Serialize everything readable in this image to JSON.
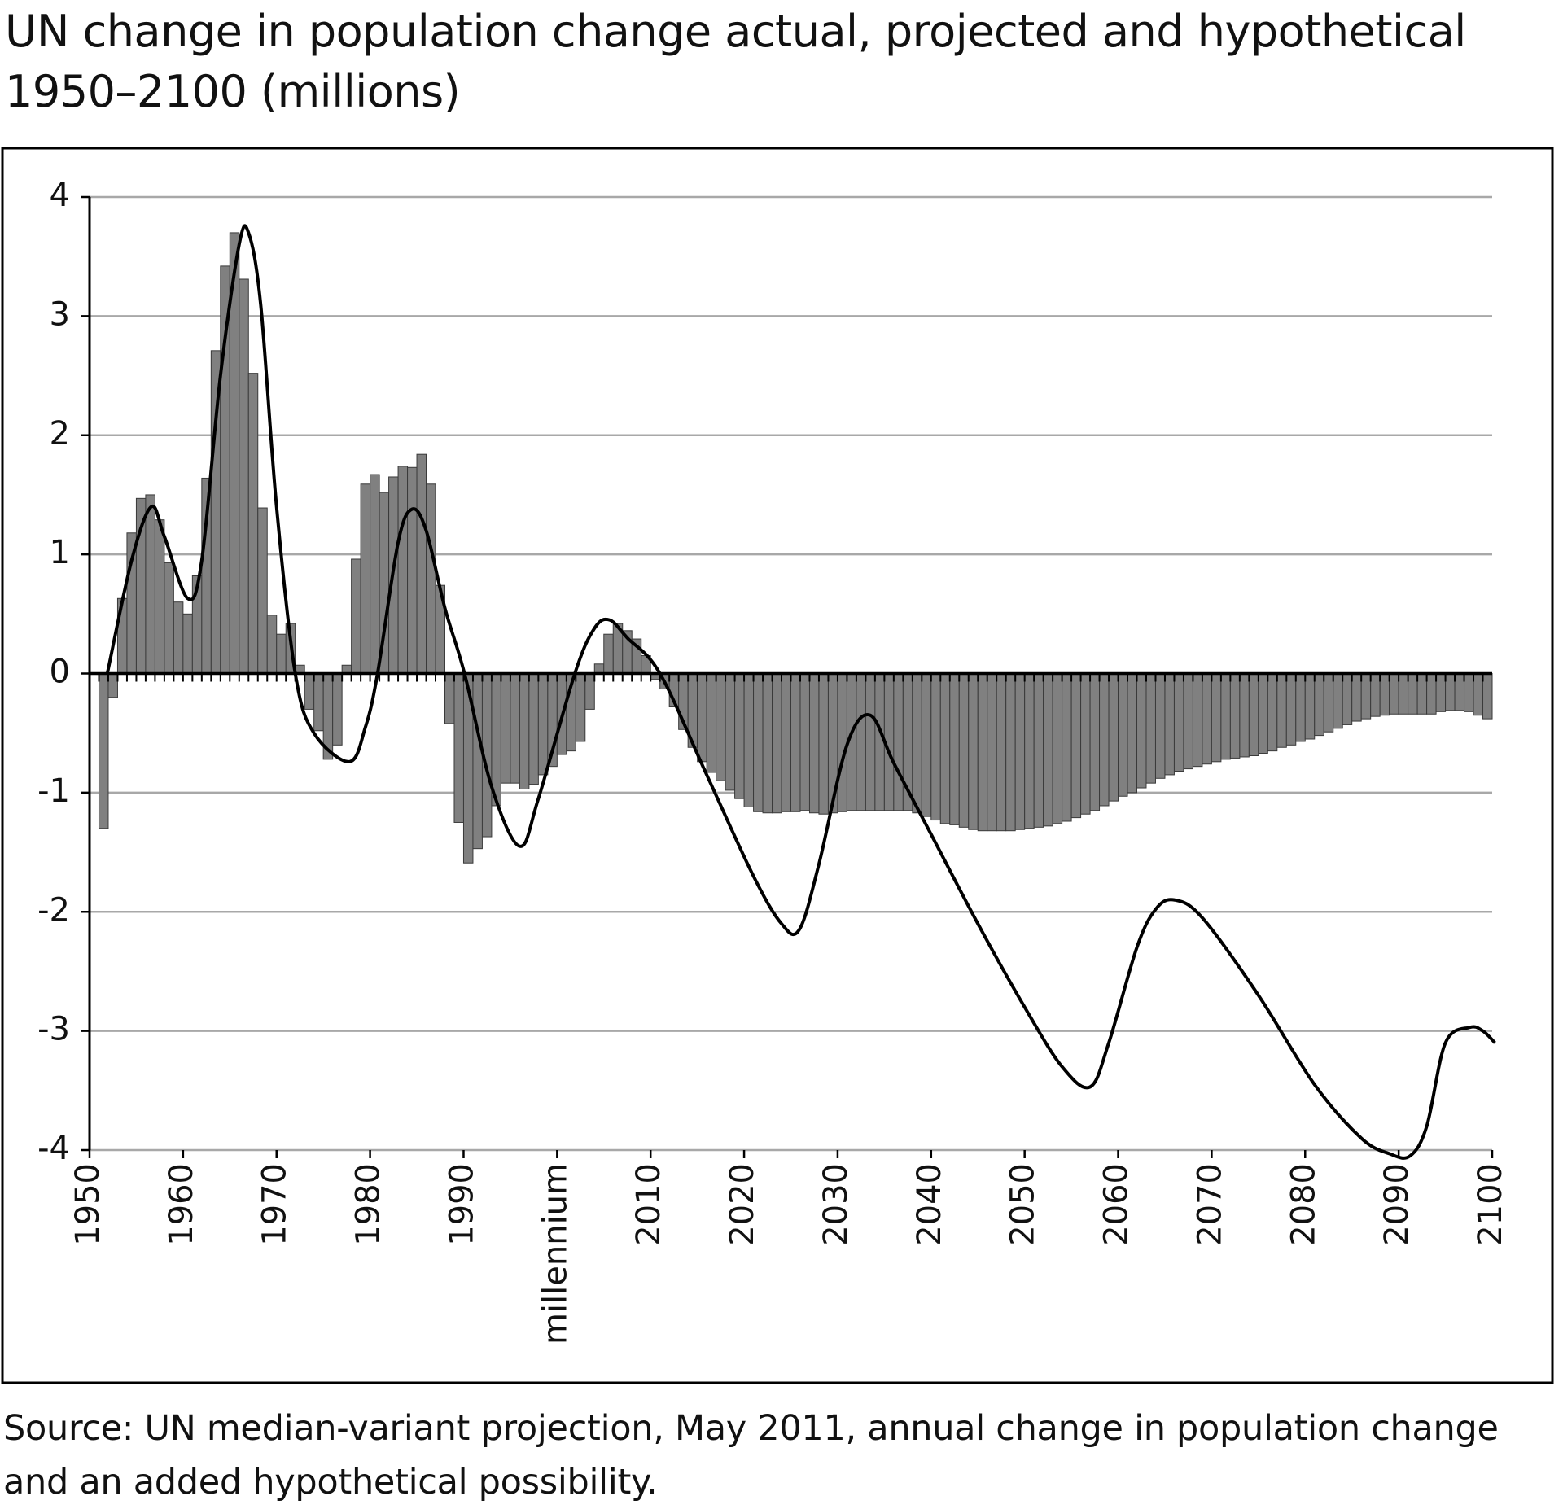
{
  "chart_data": {
    "type": "combo",
    "title": "UN change in population change actual, projected and hypothetical\n1950–2100 (millions)",
    "source": "Source: UN median-variant projection, May 2011, annual change in population change\nand an added hypothetical possibility.",
    "xlim": [
      1950,
      2100
    ],
    "xticks": [
      1950,
      1960,
      1970,
      1980,
      1990,
      {
        "value": 2000,
        "label": "millennium"
      },
      2010,
      2020,
      2030,
      2040,
      2050,
      2060,
      2070,
      2080,
      2090,
      2100
    ],
    "ylim": [
      -4,
      4
    ],
    "yticks": [
      -4,
      -3,
      -2,
      -1,
      0,
      1,
      2,
      3,
      4
    ],
    "grid": true,
    "series": [
      {
        "type": "bar",
        "color": "#808080",
        "x": [
          1951,
          1952,
          1953,
          1954,
          1955,
          1956,
          1957,
          1958,
          1959,
          1960,
          1961,
          1962,
          1963,
          1964,
          1965,
          1966,
          1967,
          1968,
          1969,
          1970,
          1971,
          1972,
          1973,
          1974,
          1975,
          1976,
          1977,
          1978,
          1979,
          1980,
          1981,
          1982,
          1983,
          1984,
          1985,
          1986,
          1987,
          1988,
          1989,
          1990,
          1991,
          1992,
          1993,
          1994,
          1995,
          1996,
          1997,
          1998,
          1999,
          2000,
          2001,
          2002,
          2003,
          2004,
          2005,
          2006,
          2007,
          2008,
          2009,
          2010,
          2011,
          2012,
          2013,
          2014,
          2015,
          2016,
          2017,
          2018,
          2019,
          2020,
          2021,
          2022,
          2023,
          2024,
          2025,
          2026,
          2027,
          2028,
          2029,
          2030,
          2031,
          2032,
          2033,
          2034,
          2035,
          2036,
          2037,
          2038,
          2039,
          2040,
          2041,
          2042,
          2043,
          2044,
          2045,
          2046,
          2047,
          2048,
          2049,
          2050,
          2051,
          2052,
          2053,
          2054,
          2055,
          2056,
          2057,
          2058,
          2059,
          2060,
          2061,
          2062,
          2063,
          2064,
          2065,
          2066,
          2067,
          2068,
          2069,
          2070,
          2071,
          2072,
          2073,
          2074,
          2075,
          2076,
          2077,
          2078,
          2079,
          2080,
          2081,
          2082,
          2083,
          2084,
          2085,
          2086,
          2087,
          2088,
          2089,
          2090,
          2091,
          2092,
          2093,
          2094,
          2095,
          2096,
          2097,
          2098,
          2099
        ],
        "values": [
          -1.3,
          -0.2,
          0.63,
          1.18,
          1.47,
          1.5,
          1.29,
          0.93,
          0.6,
          0.5,
          0.82,
          1.64,
          2.71,
          3.42,
          3.7,
          3.31,
          2.52,
          1.39,
          0.49,
          0.33,
          0.42,
          0.07,
          -0.3,
          -0.48,
          -0.72,
          -0.6,
          0.07,
          0.96,
          1.59,
          1.67,
          1.52,
          1.65,
          1.74,
          1.73,
          1.84,
          1.59,
          0.74,
          -0.42,
          -1.25,
          -1.59,
          -1.47,
          -1.37,
          -1.11,
          -0.92,
          -0.92,
          -0.97,
          -0.93,
          -0.85,
          -0.78,
          -0.68,
          -0.65,
          -0.57,
          -0.3,
          0.08,
          0.33,
          0.42,
          0.36,
          0.29,
          0.15,
          -0.05,
          -0.13,
          -0.28,
          -0.47,
          -0.62,
          -0.74,
          -0.83,
          -0.9,
          -0.98,
          -1.05,
          -1.12,
          -1.16,
          -1.17,
          -1.17,
          -1.16,
          -1.16,
          -1.15,
          -1.17,
          -1.18,
          -1.17,
          -1.16,
          -1.15,
          -1.15,
          -1.15,
          -1.15,
          -1.15,
          -1.15,
          -1.15,
          -1.17,
          -1.2,
          -1.23,
          -1.26,
          -1.27,
          -1.29,
          -1.31,
          -1.32,
          -1.32,
          -1.32,
          -1.32,
          -1.31,
          -1.3,
          -1.29,
          -1.28,
          -1.26,
          -1.24,
          -1.21,
          -1.18,
          -1.15,
          -1.11,
          -1.07,
          -1.03,
          -1.0,
          -0.96,
          -0.92,
          -0.88,
          -0.85,
          -0.82,
          -0.8,
          -0.78,
          -0.76,
          -0.74,
          -0.72,
          -0.71,
          -0.7,
          -0.69,
          -0.67,
          -0.65,
          -0.62,
          -0.6,
          -0.57,
          -0.55,
          -0.52,
          -0.49,
          -0.46,
          -0.43,
          -0.4,
          -0.38,
          -0.36,
          -0.35,
          -0.34,
          -0.34,
          -0.34,
          -0.34,
          -0.34,
          -0.32,
          -0.31,
          -0.31,
          -0.32,
          -0.35,
          -0.38
        ]
      },
      {
        "type": "line",
        "color": "#000000",
        "x": [
          1951.9,
          1954.5,
          1956.6,
          1958,
          1960.5,
          1962,
          1964,
          1966,
          1967,
          1968.3,
          1970,
          1972,
          1974,
          1977.8,
          1979.5,
          1980.8,
          1983,
          1984.5,
          1986,
          1988,
          1990.1,
          1993,
          1996,
          1998,
          2001.9,
          2004,
          2005.6,
          2007.5,
          2011,
          2016,
          2021,
          2024,
          2025.9,
          2028,
          2031,
          2033.5,
          2036,
          2040,
          2045,
          2050,
          2054,
          2057,
          2059,
          2062,
          2064,
          2066,
          2069,
          2075,
          2081,
          2086,
          2089,
          2091.2,
          2093,
          2095,
          2097.6,
          2099,
          2100.3
        ],
        "values": [
          0,
          0.95,
          1.4,
          1.15,
          0.63,
          0.95,
          2.5,
          3.6,
          3.7,
          3.1,
          1.4,
          0,
          -0.5,
          -0.74,
          -0.45,
          0,
          1.1,
          1.38,
          1.2,
          0.55,
          0,
          -0.95,
          -1.45,
          -1.05,
          0,
          0.38,
          0.45,
          0.3,
          0,
          -0.85,
          -1.7,
          -2.1,
          -2.15,
          -1.6,
          -0.6,
          -0.35,
          -0.75,
          -1.35,
          -2.1,
          -2.8,
          -3.3,
          -3.47,
          -3.1,
          -2.3,
          -1.98,
          -1.9,
          -2.05,
          -2.7,
          -3.45,
          -3.9,
          -4.03,
          -4.05,
          -3.8,
          -3.1,
          -2.97,
          -3,
          -3.1
        ]
      }
    ]
  }
}
